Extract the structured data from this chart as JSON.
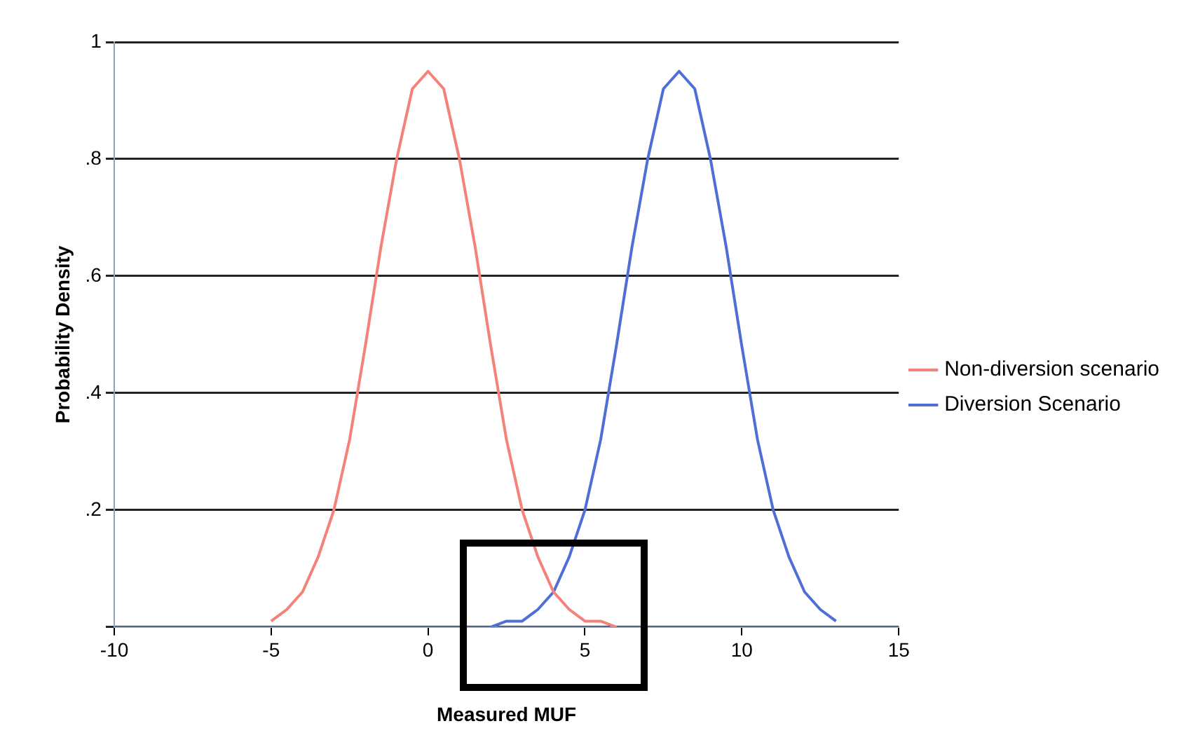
{
  "chart_data": {
    "type": "line",
    "xlabel": "Measured MUF",
    "ylabel": "Probability Density",
    "xlim": [
      -10,
      15
    ],
    "xticks": [
      -10,
      -5,
      0,
      5,
      10,
      15
    ],
    "ylim": [
      0,
      1
    ],
    "yticks": [
      {
        "value": 0,
        "label": null
      },
      {
        "value": 0.2,
        "label": ".2"
      },
      {
        "value": 0.4,
        "label": ".4"
      },
      {
        "value": 0.6,
        "label": ".6"
      },
      {
        "value": 0.8,
        "label": ".8"
      },
      1
    ],
    "grid": "y",
    "legend": "right",
    "marker": "none",
    "line_style": "solid",
    "series": [
      {
        "name": "Non-diversion scenario",
        "color": "#f4827a",
        "x": [
          -5,
          -4.5,
          -4,
          -3.5,
          -3,
          -2.5,
          -2,
          -1.5,
          -1,
          -0.5,
          0,
          0.5,
          1,
          1.5,
          2,
          2.5,
          3,
          3.5,
          4,
          4.5,
          5,
          5.5,
          6
        ],
        "values": [
          0.01,
          0.03,
          0.06,
          0.12,
          0.2,
          0.32,
          0.48,
          0.65,
          0.8,
          0.92,
          0.95,
          0.92,
          0.8,
          0.65,
          0.48,
          0.32,
          0.2,
          0.12,
          0.06,
          0.03,
          0.01,
          0.01,
          0
        ]
      },
      {
        "name": "Diversion Scenario",
        "color": "#4f6fd6",
        "x": [
          2,
          2.5,
          3,
          3.5,
          4,
          4.5,
          5,
          5.5,
          6,
          6.5,
          7,
          7.5,
          8,
          8.5,
          9,
          9.5,
          10,
          10.5,
          11,
          11.5,
          12,
          12.5,
          13
        ],
        "values": [
          0,
          0.01,
          0.01,
          0.03,
          0.06,
          0.12,
          0.2,
          0.32,
          0.48,
          0.65,
          0.8,
          0.92,
          0.95,
          0.92,
          0.8,
          0.65,
          0.48,
          0.32,
          0.2,
          0.12,
          0.06,
          0.03,
          0.01
        ]
      }
    ]
  }
}
